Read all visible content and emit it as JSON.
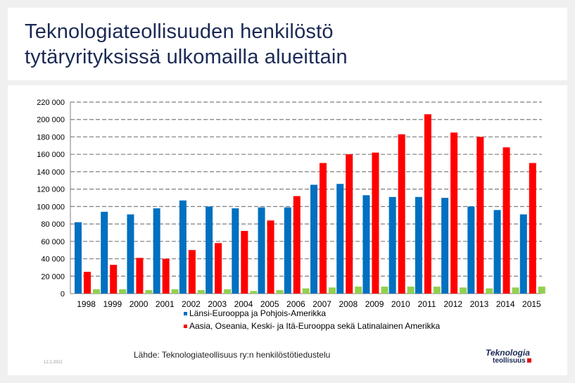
{
  "title": {
    "line1": "Teknologiateollisuuden henkilöstö",
    "line2": "tytäryrityksissä ulkomailla alueittain"
  },
  "chart_data": {
    "type": "bar",
    "categories": [
      "1998",
      "1999",
      "2000",
      "2001",
      "2002",
      "2003",
      "2004",
      "2005",
      "2006",
      "2007",
      "2008",
      "2009",
      "2010",
      "2011",
      "2012",
      "2013",
      "2014",
      "2015"
    ],
    "series": [
      {
        "name": "Länsi-Eurooppa ja Pohjois-Amerikka",
        "color": "#0070c0",
        "values": [
          82000,
          94000,
          91000,
          98000,
          107000,
          100000,
          98000,
          99000,
          99000,
          125000,
          126000,
          113000,
          111000,
          111000,
          110000,
          100000,
          96000,
          91000
        ]
      },
      {
        "name": "Aasia, Oseania, Keski- ja Itä-Eurooppa sekä Latinalainen Amerikka",
        "color": "#ff0000",
        "values": [
          25000,
          33000,
          41000,
          40000,
          50000,
          58000,
          72000,
          84000,
          112000,
          150000,
          160000,
          162000,
          183000,
          206000,
          185000,
          180000,
          168000,
          150000
        ]
      },
      {
        "name": "",
        "color": "#92d050",
        "values": [
          5000,
          5000,
          4000,
          5000,
          4000,
          5000,
          3000,
          4000,
          6000,
          7000,
          8000,
          8000,
          8000,
          8000,
          7000,
          6000,
          7000,
          8000
        ]
      }
    ],
    "ylim": [
      0,
      220000
    ],
    "yticks": [
      "0",
      "20 000",
      "40 000",
      "60 000",
      "80 000",
      "100 000",
      "120 000",
      "140 000",
      "160 000",
      "180 000",
      "200 000",
      "220 000"
    ],
    "title": "",
    "xlabel": "",
    "ylabel": "",
    "grid": true,
    "legend": "bottom"
  },
  "footer": {
    "source": "Lähde: Teknologiateollisuus ry:n henkilöstötiedustelu",
    "date": "12.2.2022",
    "logo_line1": "Teknologia",
    "logo_line2": "teollisuus"
  }
}
